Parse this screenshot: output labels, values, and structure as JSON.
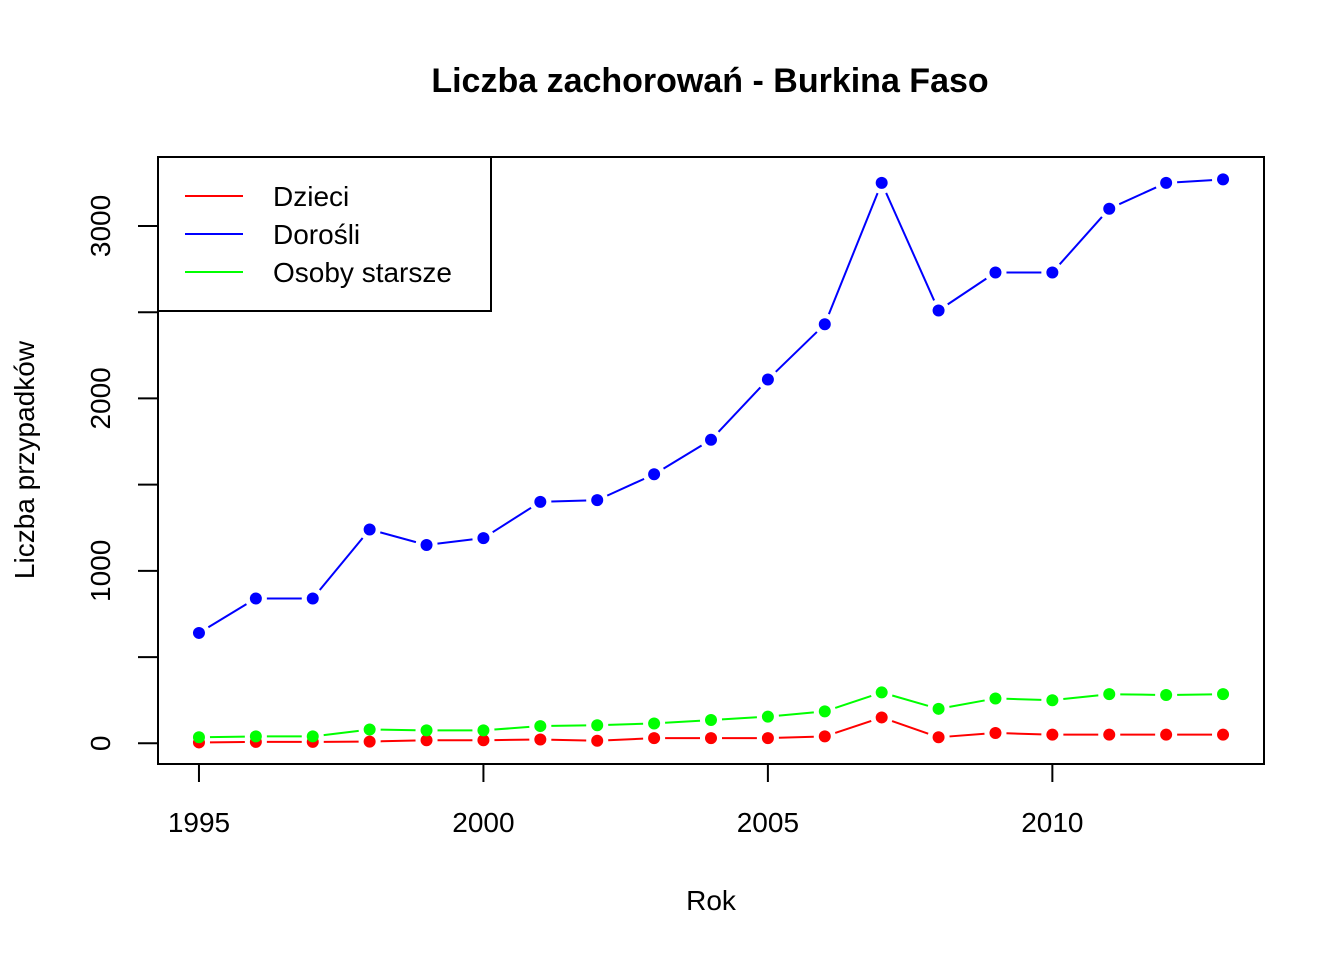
{
  "chart_data": {
    "type": "line",
    "title": "Liczba zachorowań -  Burkina Faso",
    "xlabel": "Rok",
    "ylabel": "Liczba przypadków",
    "xlim": [
      1994.28,
      1995.0
    ],
    "x_ticks": [
      "1995",
      "2000",
      "2005",
      "2010"
    ],
    "y_ticks": [
      "0",
      "500",
      "1000",
      "1500",
      "2000",
      "2500",
      "3000"
    ],
    "ylim": [
      -120,
      3400
    ],
    "legend": "top-left",
    "grid": false,
    "x": [
      1995,
      1996,
      1997,
      1998,
      1999,
      2000,
      2001,
      2002,
      2003,
      2004,
      2005,
      2006,
      2007,
      2008,
      2009,
      2010,
      2011,
      2012,
      2013
    ],
    "series": [
      {
        "name": "Dzieci",
        "color": "#ff0000",
        "values": [
          5,
          8,
          8,
          10,
          18,
          18,
          22,
          15,
          30,
          30,
          30,
          40,
          150,
          35,
          60,
          50,
          50,
          50,
          50
        ]
      },
      {
        "name": "Dorośli",
        "color": "#0000ff",
        "values": [
          640,
          840,
          840,
          1240,
          1150,
          1190,
          1400,
          1410,
          1560,
          1760,
          2110,
          2430,
          3250,
          2510,
          2730,
          2730,
          3100,
          3250,
          3270
        ]
      },
      {
        "name": "Osoby starsze",
        "color": "#00ff00",
        "values": [
          35,
          40,
          40,
          80,
          75,
          75,
          100,
          105,
          115,
          135,
          155,
          185,
          295,
          200,
          260,
          250,
          285,
          280,
          285
        ]
      }
    ]
  }
}
